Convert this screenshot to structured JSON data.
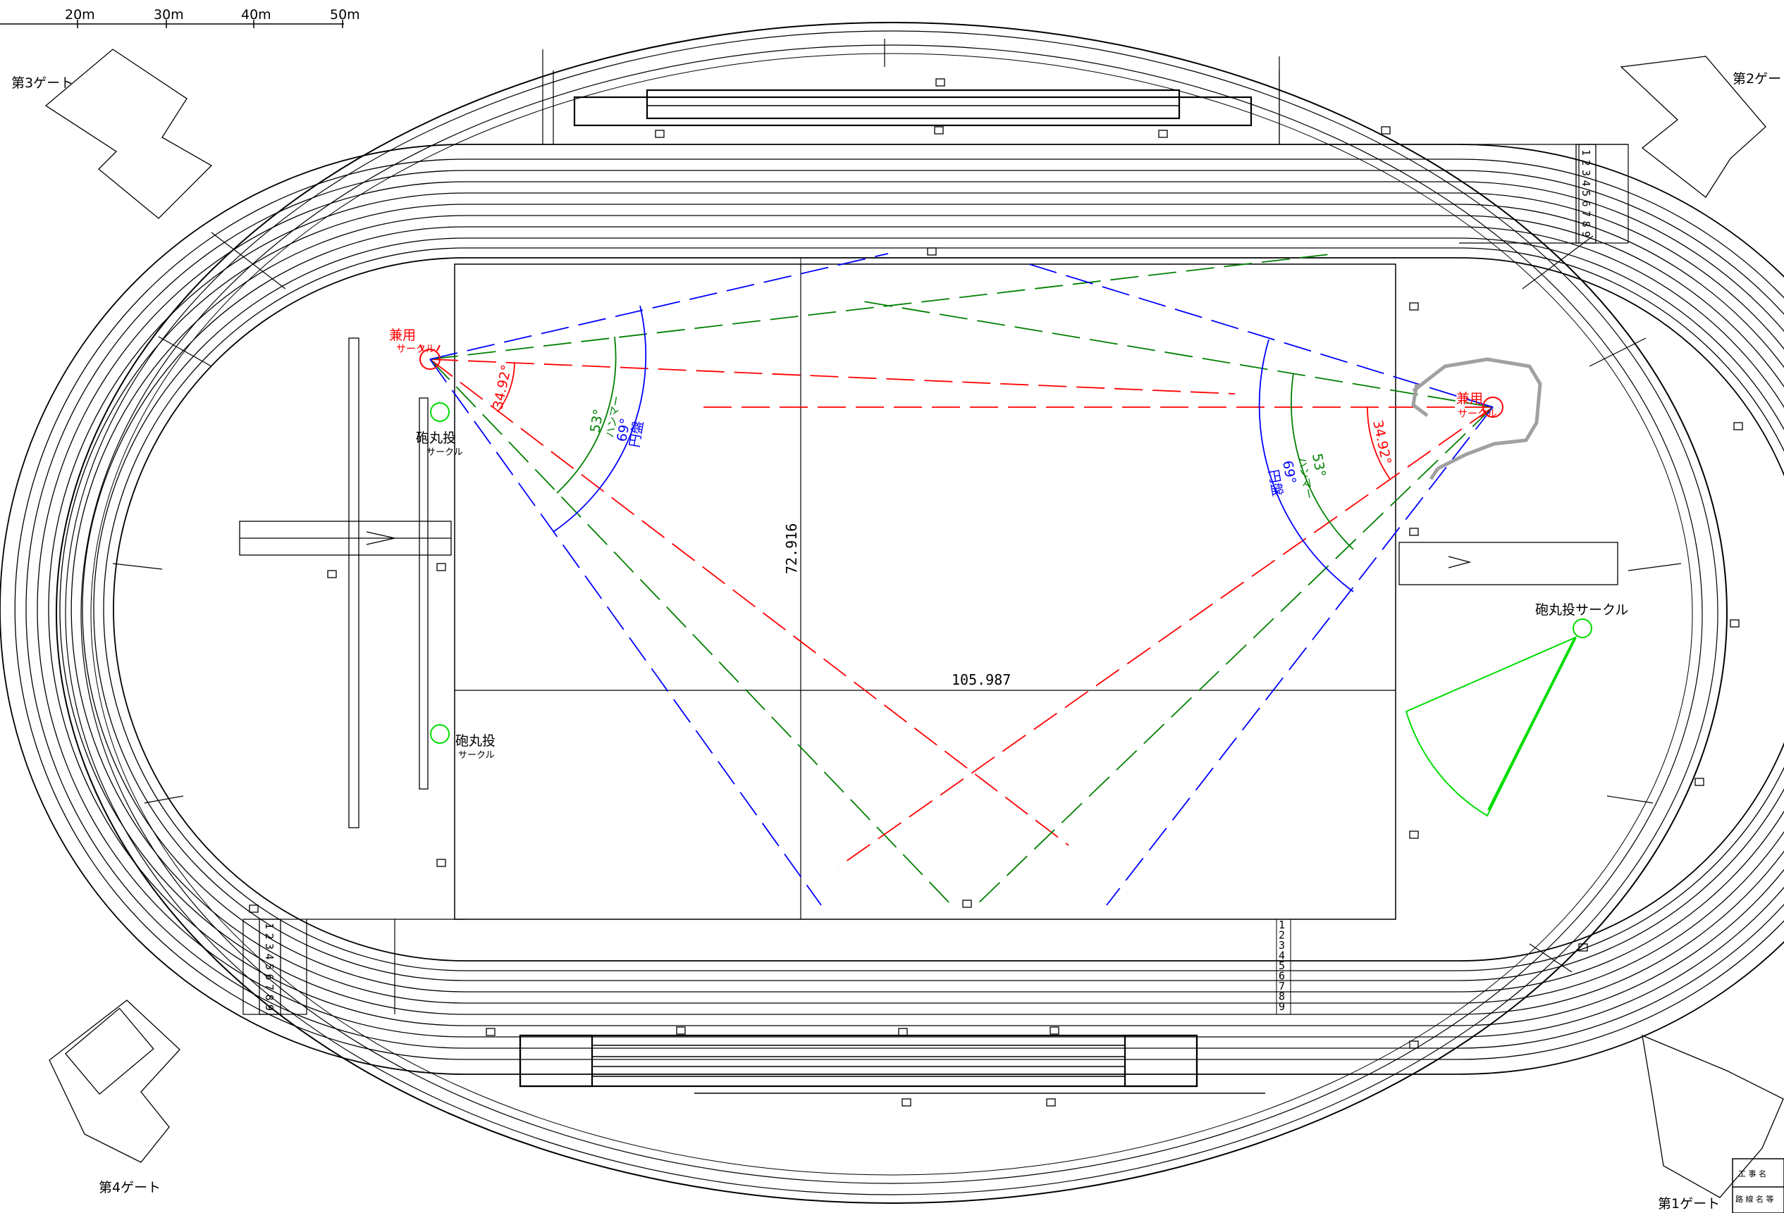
{
  "scale_bar": {
    "ticks": [
      "20m",
      "30m",
      "40m",
      "50m"
    ]
  },
  "gates": {
    "gate1": "第1ゲート",
    "gate2": "第2ゲー",
    "gate3": "第3ゲート",
    "gate4": "第4ゲート"
  },
  "dimensions": {
    "field_length": "105.987",
    "field_width": "72.916"
  },
  "left_circle": {
    "label_main": "兼用",
    "label_sub": "サークル",
    "sector_angle": "34.92°",
    "hammer_angle": "53°",
    "hammer_label": "ハンマー",
    "discus_angle": "69°",
    "discus_label": "円盤",
    "shotput1_main": "砲丸投",
    "shotput1_sub": "サークル",
    "shotput2_main": "砲丸投",
    "shotput2_sub": "サークル"
  },
  "right_circle": {
    "label_main": "兼用",
    "label_sub": "サークル",
    "sector_angle": "34.92°",
    "hammer_angle": "53°",
    "hammer_label": "ハンマー",
    "discus_angle": "69°",
    "discus_label": "円盤",
    "shotput_label": "砲丸投サークル"
  },
  "lane_numbers": [
    "1",
    "2",
    "3",
    "4",
    "5",
    "6",
    "7",
    "8",
    "9"
  ],
  "title_block": {
    "row1": "工 事 名",
    "row2": "路 線 名 等"
  },
  "colors": {
    "line": "#000000",
    "red": "#ff0000",
    "green": "#008000",
    "blue": "#0000ff",
    "lime": "#00dd00",
    "gray": "#a0a0a0"
  }
}
